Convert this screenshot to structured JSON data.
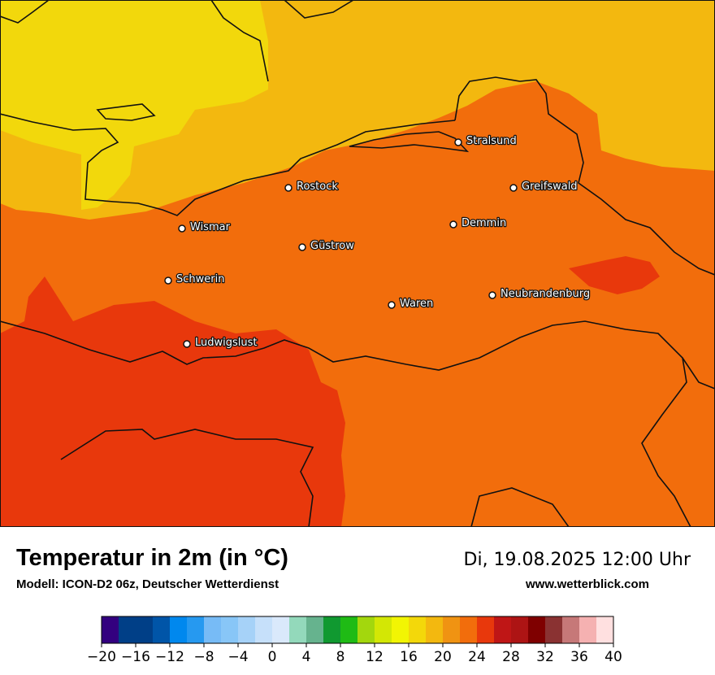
{
  "map": {
    "cities": [
      {
        "name": "Stralsund"
      },
      {
        "name": "Rostock"
      },
      {
        "name": "Greifswald"
      },
      {
        "name": "Demmin"
      },
      {
        "name": "Wismar"
      },
      {
        "name": "Güstrow"
      },
      {
        "name": "Schwerin"
      },
      {
        "name": "Waren"
      },
      {
        "name": "Neubrandenburg"
      },
      {
        "name": "Ludwigslust"
      }
    ],
    "colors": {
      "band_16_18": "#f2d80c",
      "band_18_20": "#f3b80f",
      "band_22_24": "#f26d0c",
      "band_24_26": "#e8380c",
      "coast_border": "#111111"
    }
  },
  "footer": {
    "title": "Temperatur in 2m (in °C)",
    "model": "Modell: ICON-D2 06z, Deutscher Wetterdienst",
    "datetime": "Di, 19.08.2025 12:00 Uhr",
    "website": "www.wetterblick.com"
  },
  "legend": {
    "min": -20,
    "max": 40,
    "step": 2,
    "colors": [
      "#33007f",
      "#003f87",
      "#003f87",
      "#0055a8",
      "#0088ee",
      "#2699f0",
      "#77bbf6",
      "#88c6f7",
      "#a6d2f8",
      "#c6e0fa",
      "#dae9fb",
      "#93d9bb",
      "#66b38e",
      "#109930",
      "#1fbb15",
      "#a3d70d",
      "#d3e705",
      "#f2f503",
      "#f3d80a",
      "#f3b80f",
      "#f09312",
      "#f26d0c",
      "#e8380c",
      "#bf1616",
      "#ad1414",
      "#7f0000",
      "#8a3232",
      "#c67878",
      "#f5b1b1",
      "#ffe0e0"
    ],
    "tick_labels": [
      "−20",
      "−16",
      "−12",
      "−8",
      "−4",
      "0",
      "4",
      "8",
      "12",
      "16",
      "20",
      "24",
      "28",
      "32",
      "36",
      "40"
    ]
  }
}
